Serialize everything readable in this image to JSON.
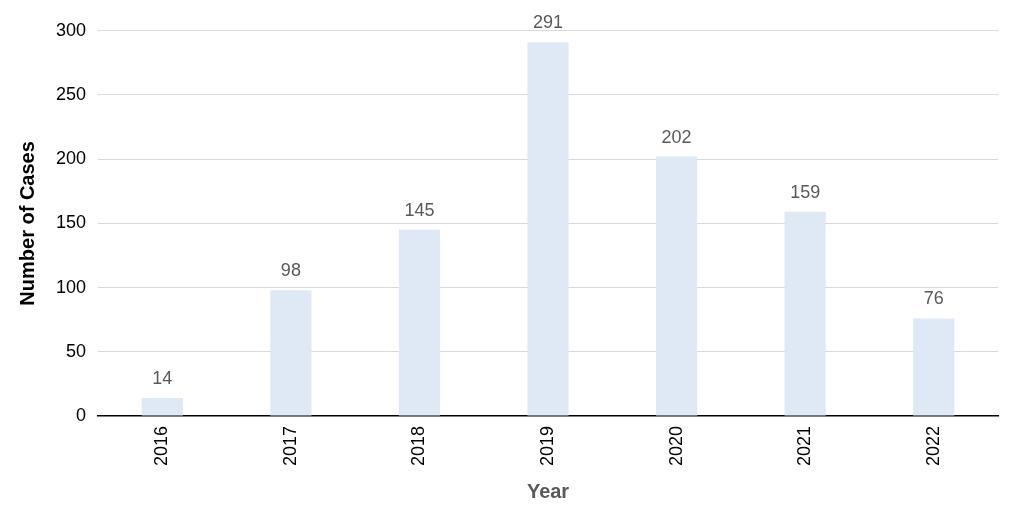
{
  "chart_data": {
    "type": "bar",
    "xlabel": "Year",
    "ylabel": "Number of Cases",
    "categories": [
      "2016",
      "2017",
      "2018",
      "2019",
      "2020",
      "2021",
      "2022"
    ],
    "values": [
      14,
      98,
      145,
      291,
      202,
      159,
      76
    ],
    "color": "#dfe8f5",
    "ylim": [
      0,
      300
    ],
    "yticks": [
      0,
      50,
      100,
      150,
      200,
      250,
      300
    ],
    "grid": "y",
    "data_labels": true
  }
}
